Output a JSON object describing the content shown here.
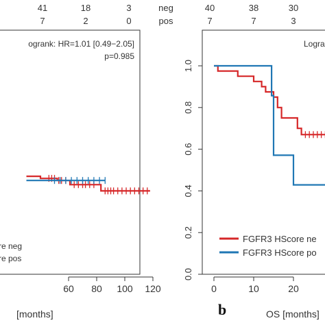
{
  "chart_data": [
    {
      "type": "line",
      "title": "",
      "xlabel": "[months]",
      "ylabel": "",
      "xlim": [
        30,
        122
      ],
      "ylim": [
        0,
        1.05
      ],
      "xticks": [
        "60",
        "80",
        "100",
        "120"
      ],
      "legend_placement": "bottom-left",
      "risk_table": {
        "rows": [
          {
            "label": "neg",
            "values": [
              "41",
              "18",
              "3"
            ]
          },
          {
            "label": "pos",
            "values": [
              "7",
              "2",
              "0"
            ]
          }
        ]
      },
      "annotation": {
        "logrank": "ogrank: HR=1.01 [0.49−2.05]",
        "p": "p=0.985"
      },
      "legend": [
        "re neg",
        "re pos"
      ],
      "series": [
        {
          "name": "neg",
          "color": "#d62728",
          "points": [
            [
              30,
              0.47
            ],
            [
              40,
              0.47
            ],
            [
              40,
              0.46
            ],
            [
              52,
              0.46
            ],
            [
              52,
              0.45
            ],
            [
              61,
              0.45
            ],
            [
              61,
              0.43
            ],
            [
              83,
              0.43
            ],
            [
              83,
              0.4
            ],
            [
              118,
              0.4
            ]
          ],
          "censor_x": [
            46,
            48,
            50,
            53,
            55,
            58,
            64,
            67,
            70,
            72,
            75,
            78,
            86,
            88,
            90,
            92,
            95,
            98,
            101,
            104,
            107,
            110,
            113,
            116
          ]
        },
        {
          "name": "pos",
          "color": "#1f77b4",
          "points": [
            [
              30,
              0.45
            ],
            [
              86,
              0.45
            ]
          ],
          "censor_x": [
            50,
            54,
            58,
            62,
            66,
            70,
            74,
            78,
            82,
            86
          ]
        }
      ]
    },
    {
      "type": "line",
      "title": "",
      "xlabel": "OS [months]",
      "ylabel": "",
      "panel_label": "b",
      "xlim": [
        0,
        30
      ],
      "ylim": [
        0,
        1.05
      ],
      "xticks": [
        "0",
        "10",
        "20"
      ],
      "yticks": [
        "0.0",
        "0.2",
        "0.4",
        "0.6",
        "0.8",
        "1.0"
      ],
      "legend_placement": "bottom-right",
      "risk_table": {
        "rows": [
          {
            "label": "",
            "values": [
              "40",
              "38",
              "30"
            ]
          },
          {
            "label": "",
            "values": [
              "7",
              "7",
              "3"
            ]
          }
        ]
      },
      "annotation": {
        "logrank": "Logra"
      },
      "legend": [
        "FGFR3 HScore ne",
        "FGFR3 HScore po"
      ],
      "series": [
        {
          "name": "FGFR3 HScore neg",
          "color": "#d62728",
          "points": [
            [
              0,
              1.0
            ],
            [
              1,
              1.0
            ],
            [
              1,
              0.975
            ],
            [
              6,
              0.975
            ],
            [
              6,
              0.95
            ],
            [
              10,
              0.95
            ],
            [
              10,
              0.925
            ],
            [
              12,
              0.925
            ],
            [
              12,
              0.9
            ],
            [
              13,
              0.9
            ],
            [
              13,
              0.875
            ],
            [
              15,
              0.875
            ],
            [
              15,
              0.85
            ],
            [
              16,
              0.85
            ],
            [
              16,
              0.8
            ],
            [
              17,
              0.8
            ],
            [
              17,
              0.75
            ],
            [
              21,
              0.75
            ],
            [
              21,
              0.7
            ],
            [
              22,
              0.7
            ],
            [
              22,
              0.67
            ],
            [
              30,
              0.67
            ]
          ],
          "censor_x": [
            23,
            24,
            25,
            26,
            27,
            28
          ]
        },
        {
          "name": "FGFR3 HScore pos",
          "color": "#1f77b4",
          "points": [
            [
              0,
              1.0
            ],
            [
              14.5,
              1.0
            ],
            [
              14.5,
              0.857
            ],
            [
              15,
              0.857
            ],
            [
              15,
              0.571
            ],
            [
              20,
              0.571
            ],
            [
              20,
              0.429
            ],
            [
              30,
              0.429
            ]
          ],
          "censor_x": []
        }
      ]
    }
  ]
}
